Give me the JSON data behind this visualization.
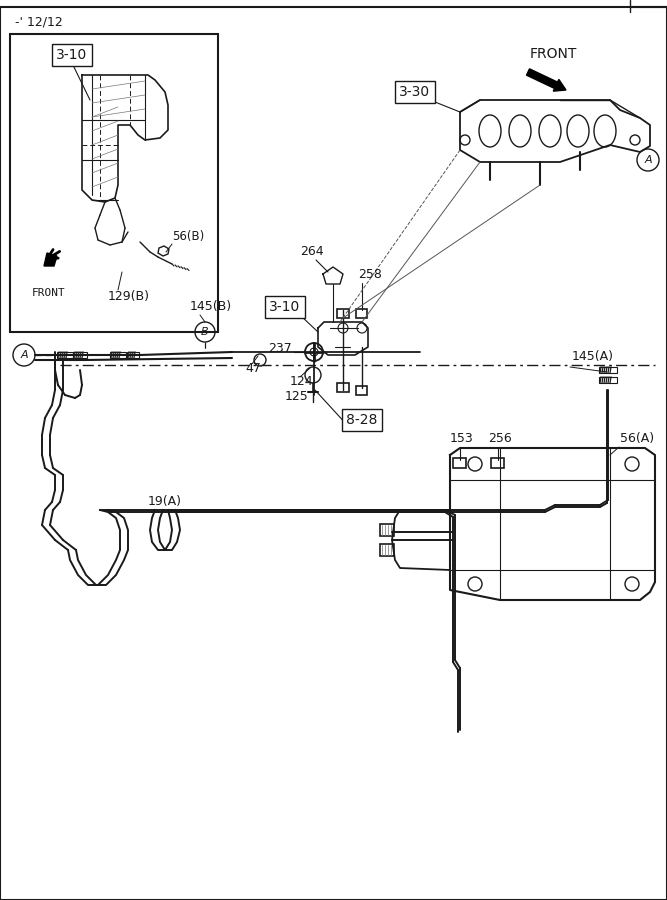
{
  "page_label": "-' 12/12",
  "bg_color": "#ffffff",
  "line_color": "#1a1a1a",
  "text_color": "#1a1a1a",
  "figsize": [
    6.67,
    9.0
  ],
  "dpi": 100,
  "labels": {
    "page": "-' 12/12",
    "front_top": "FRONT",
    "front_box": "FRONT",
    "ref_3_10_box": "3-10",
    "ref_3_10_main": "3-10",
    "ref_3_30": "3-30",
    "ref_8_28": "8-28",
    "n258": "258",
    "n264": "264",
    "n237": "237",
    "n145A": "145(A)",
    "n145B": "145(B)",
    "n47": "47",
    "n124": "124",
    "n125": "125",
    "n56A": "56(A)",
    "n56B": "56(B)",
    "n129B": "129(B)",
    "n153": "153",
    "n256": "256",
    "n19A": "19(A)",
    "circA": "A",
    "circB": "B"
  }
}
